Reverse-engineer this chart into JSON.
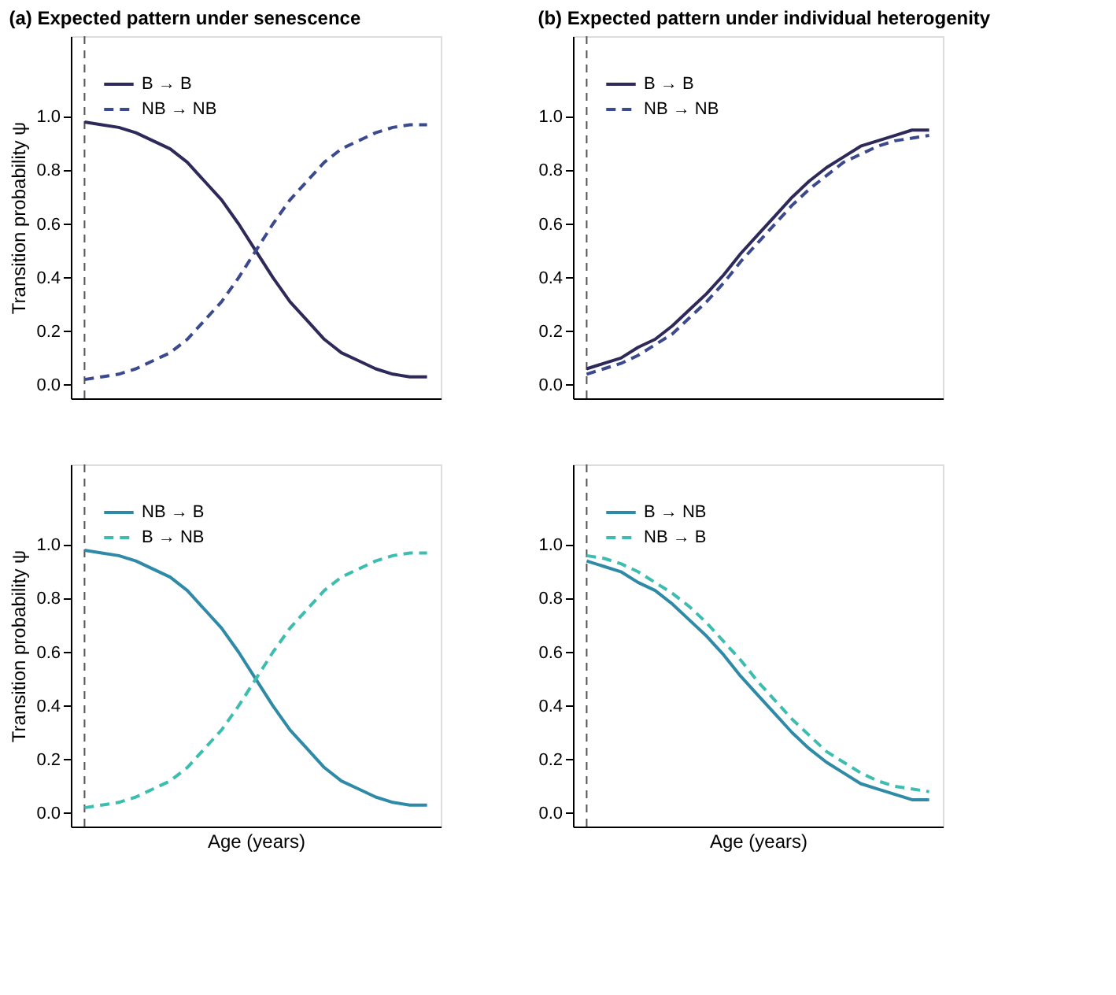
{
  "chart_data": [
    {
      "type": "line",
      "title": "(a) Expected pattern under senescence",
      "ylabel": "Transition probability ψ",
      "categories": [
        null,
        null,
        null,
        null,
        null,
        null,
        null,
        null,
        null,
        null,
        null,
        null,
        null,
        null,
        null,
        null,
        null,
        null,
        null,
        null,
        null
      ],
      "ylim": [
        -0.05,
        1.3
      ],
      "yticks": [
        {
          "value": 0,
          "label": "0.0"
        },
        {
          "value": 0.2,
          "label": "0.2"
        },
        {
          "value": 0.4,
          "label": "0.4"
        },
        {
          "value": 0.6,
          "label": "0.6"
        },
        {
          "value": 0.8,
          "label": "0.8"
        },
        {
          "value": 1,
          "label": "1.0"
        }
      ],
      "tick_labels": "y",
      "grid": false,
      "legend": "top left",
      "series": [
        {
          "name": "B → B",
          "color": "#2d2a5a",
          "line_style": "solid",
          "values": [
            0.98,
            0.97,
            0.96,
            0.94,
            0.91,
            0.88,
            0.83,
            0.76,
            0.69,
            0.6,
            0.5,
            0.4,
            0.31,
            0.24,
            0.17,
            0.12,
            0.09,
            0.06,
            0.04,
            0.03,
            0.03
          ]
        },
        {
          "name": "NB → NB",
          "color": "#3b4a8e",
          "line_style": "dashed",
          "values": [
            0.02,
            0.03,
            0.04,
            0.06,
            0.09,
            0.12,
            0.17,
            0.24,
            0.31,
            0.4,
            0.5,
            0.6,
            0.69,
            0.76,
            0.83,
            0.88,
            0.91,
            0.94,
            0.96,
            0.97,
            0.97
          ]
        }
      ]
    },
    {
      "type": "line",
      "title": "(b) Expected pattern under individual heterogenity",
      "categories": [
        null,
        null,
        null,
        null,
        null,
        null,
        null,
        null,
        null,
        null,
        null,
        null,
        null,
        null,
        null,
        null,
        null,
        null,
        null,
        null,
        null
      ],
      "ylim": [
        -0.05,
        1.3
      ],
      "yticks": [
        {
          "value": 0,
          "label": "0.0"
        },
        {
          "value": 0.2,
          "label": "0.2"
        },
        {
          "value": 0.4,
          "label": "0.4"
        },
        {
          "value": 0.6,
          "label": "0.6"
        },
        {
          "value": 0.8,
          "label": "0.8"
        },
        {
          "value": 1,
          "label": "1.0"
        }
      ],
      "tick_labels": "y",
      "grid": false,
      "legend": "top left",
      "series": [
        {
          "name": "B → B",
          "color": "#2d2a5a",
          "line_style": "solid",
          "values": [
            0.06,
            0.08,
            0.1,
            0.14,
            0.17,
            0.22,
            0.28,
            0.34,
            0.41,
            0.49,
            0.56,
            0.63,
            0.7,
            0.76,
            0.81,
            0.85,
            0.89,
            0.91,
            0.93,
            0.95,
            0.95
          ]
        },
        {
          "name": "NB → NB",
          "color": "#3b4a8e",
          "line_style": "dashed",
          "values": [
            0.04,
            0.06,
            0.08,
            0.11,
            0.15,
            0.19,
            0.25,
            0.31,
            0.38,
            0.46,
            0.53,
            0.6,
            0.67,
            0.73,
            0.78,
            0.83,
            0.86,
            0.89,
            0.91,
            0.92,
            0.93
          ]
        }
      ]
    },
    {
      "type": "line",
      "xlabel": "Age (years)",
      "ylabel": "Transition probability ψ",
      "categories": [
        null,
        null,
        null,
        null,
        null,
        null,
        null,
        null,
        null,
        null,
        null,
        null,
        null,
        null,
        null,
        null,
        null,
        null,
        null,
        null,
        null
      ],
      "ylim": [
        -0.05,
        1.3
      ],
      "yticks": [
        {
          "value": 0,
          "label": "0.0"
        },
        {
          "value": 0.2,
          "label": "0.2"
        },
        {
          "value": 0.4,
          "label": "0.4"
        },
        {
          "value": 0.6,
          "label": "0.6"
        },
        {
          "value": 0.8,
          "label": "0.8"
        },
        {
          "value": 1,
          "label": "1.0"
        }
      ],
      "tick_labels": "y",
      "grid": false,
      "legend": "top left",
      "series": [
        {
          "name": "NB → B",
          "color": "#2e8aa6",
          "line_style": "solid",
          "values": [
            0.98,
            0.97,
            0.96,
            0.94,
            0.91,
            0.88,
            0.83,
            0.76,
            0.69,
            0.6,
            0.5,
            0.4,
            0.31,
            0.24,
            0.17,
            0.12,
            0.09,
            0.06,
            0.04,
            0.03,
            0.03
          ]
        },
        {
          "name": "B → NB",
          "color": "#3dbdb0",
          "line_style": "dashed",
          "values": [
            0.02,
            0.03,
            0.04,
            0.06,
            0.09,
            0.12,
            0.17,
            0.24,
            0.31,
            0.4,
            0.5,
            0.6,
            0.69,
            0.76,
            0.83,
            0.88,
            0.91,
            0.94,
            0.96,
            0.97,
            0.97
          ]
        }
      ]
    },
    {
      "type": "line",
      "xlabel": "Age (years)",
      "categories": [
        null,
        null,
        null,
        null,
        null,
        null,
        null,
        null,
        null,
        null,
        null,
        null,
        null,
        null,
        null,
        null,
        null,
        null,
        null,
        null,
        null
      ],
      "ylim": [
        -0.05,
        1.3
      ],
      "yticks": [
        {
          "value": 0,
          "label": "0.0"
        },
        {
          "value": 0.2,
          "label": "0.2"
        },
        {
          "value": 0.4,
          "label": "0.4"
        },
        {
          "value": 0.6,
          "label": "0.6"
        },
        {
          "value": 0.8,
          "label": "0.8"
        },
        {
          "value": 1,
          "label": "1.0"
        }
      ],
      "tick_labels": "y",
      "grid": false,
      "legend": "top left",
      "series": [
        {
          "name": "B → NB",
          "color": "#2e8aa6",
          "line_style": "solid",
          "values": [
            0.94,
            0.92,
            0.9,
            0.86,
            0.83,
            0.78,
            0.72,
            0.66,
            0.59,
            0.51,
            0.44,
            0.37,
            0.3,
            0.24,
            0.19,
            0.15,
            0.11,
            0.09,
            0.07,
            0.05,
            0.05
          ]
        },
        {
          "name": "NB → B",
          "color": "#3dbdb0",
          "line_style": "dashed",
          "values": [
            0.96,
            0.95,
            0.93,
            0.9,
            0.86,
            0.82,
            0.77,
            0.71,
            0.64,
            0.57,
            0.49,
            0.42,
            0.35,
            0.29,
            0.23,
            0.19,
            0.15,
            0.12,
            0.1,
            0.09,
            0.08
          ]
        }
      ]
    }
  ]
}
